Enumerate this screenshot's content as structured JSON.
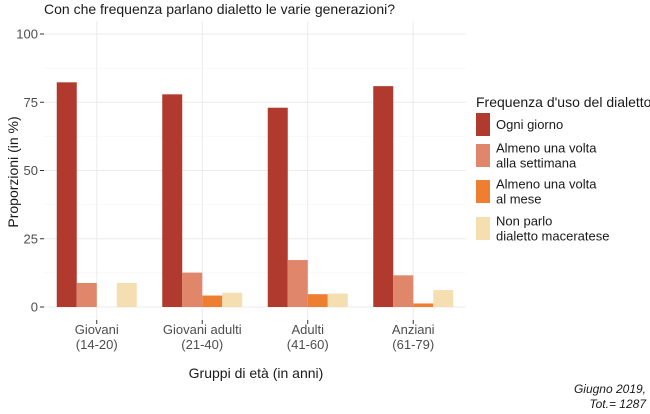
{
  "chart_data": {
    "type": "bar",
    "title": "Con che frequenza parlano dialetto le varie generazioni?",
    "xlabel": "Gruppi di età (in anni)",
    "ylabel": "Proporzioni (in %)",
    "ylim": [
      0,
      100
    ],
    "yticks": [
      "0",
      "25",
      "50",
      "75",
      "100"
    ],
    "grid": true,
    "categories": [
      [
        "Giovani",
        "(14-20)"
      ],
      [
        "Giovani adulti",
        "(21-40)"
      ],
      [
        "Adulti",
        "(41-60)"
      ],
      [
        "Anziani",
        "(61-79)"
      ]
    ],
    "legend": {
      "title": "Frequenza d'uso del dialetto",
      "placement": "right"
    },
    "series": [
      {
        "label": [
          "Ogni giorno"
        ],
        "color": "#b03a2e",
        "values": [
          82.3,
          77.9,
          73.0,
          80.9
        ]
      },
      {
        "label": [
          "Almeno una volta",
          "alla settimana"
        ],
        "color": "#e0866a",
        "values": [
          8.8,
          12.6,
          17.2,
          11.6
        ]
      },
      {
        "label": [
          "Almeno una volta",
          "al mese"
        ],
        "color": "#ef7f30",
        "values": [
          0,
          4.2,
          4.7,
          1.3
        ]
      },
      {
        "label": [
          "Non parlo",
          "dialetto maceratese"
        ],
        "color": "#f5deb0",
        "values": [
          8.8,
          5.2,
          4.9,
          6.2
        ]
      }
    ],
    "caption": [
      "Giugno 2019,",
      "Tot.= 1287"
    ]
  }
}
